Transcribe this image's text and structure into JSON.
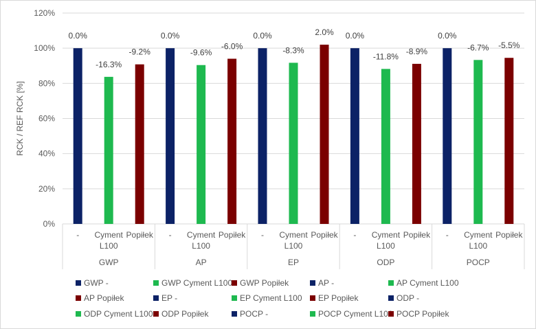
{
  "chart_data": {
    "type": "bar",
    "title": "",
    "ylabel": "RCK / REF RCK [%]",
    "xlabel": "",
    "ylim": [
      0,
      120
    ],
    "yticks": [
      "0%",
      "20%",
      "40%",
      "60%",
      "80%",
      "100%",
      "120%"
    ],
    "grid": true,
    "legend_position": "bottom",
    "colors": {
      "-": "#0c2266",
      "Cyment L100": "#1eb94f",
      "Popiłek": "#7b0000"
    },
    "groups": [
      {
        "name": "GWP",
        "bars": [
          {
            "sub": "-",
            "value": 100,
            "label": "0.0%"
          },
          {
            "sub": "Cyment L100",
            "value": 83.7,
            "label": "-16.3%"
          },
          {
            "sub": "Popiłek",
            "value": 90.8,
            "label": "-9.2%"
          }
        ]
      },
      {
        "name": "AP",
        "bars": [
          {
            "sub": "-",
            "value": 100,
            "label": "0.0%"
          },
          {
            "sub": "Cyment L100",
            "value": 90.4,
            "label": "-9.6%"
          },
          {
            "sub": "Popiłek",
            "value": 94.0,
            "label": "-6.0%"
          }
        ]
      },
      {
        "name": "EP",
        "bars": [
          {
            "sub": "-",
            "value": 100,
            "label": "0.0%"
          },
          {
            "sub": "Cyment L100",
            "value": 91.7,
            "label": "-8.3%"
          },
          {
            "sub": "Popiłek",
            "value": 102.0,
            "label": "2.0%"
          }
        ]
      },
      {
        "name": "ODP",
        "bars": [
          {
            "sub": "-",
            "value": 100,
            "label": "0.0%"
          },
          {
            "sub": "Cyment L100",
            "value": 88.2,
            "label": "-11.8%"
          },
          {
            "sub": "Popiłek",
            "value": 91.1,
            "label": "-8.9%"
          }
        ]
      },
      {
        "name": "POCP",
        "bars": [
          {
            "sub": "-",
            "value": 100,
            "label": "0.0%"
          },
          {
            "sub": "Cyment L100",
            "value": 93.3,
            "label": "-6.7%"
          },
          {
            "sub": "Popiłek",
            "value": 94.5,
            "label": "-5.5%"
          }
        ]
      }
    ],
    "subcategory_labels": [
      {
        "sub": "-",
        "lines": [
          "-"
        ]
      },
      {
        "sub": "Cyment L100",
        "lines": [
          "Cyment",
          "L100"
        ]
      },
      {
        "sub": "Popiłek",
        "lines": [
          "Popiłek"
        ]
      }
    ],
    "legend": [
      {
        "label": "GWP -",
        "sub": "-"
      },
      {
        "label": "GWP Cyment L100",
        "sub": "Cyment L100"
      },
      {
        "label": "GWP Popiłek",
        "sub": "Popiłek"
      },
      {
        "label": "AP -",
        "sub": "-"
      },
      {
        "label": "AP Cyment L100",
        "sub": "Cyment L100"
      },
      {
        "label": "AP Popiłek",
        "sub": "Popiłek"
      },
      {
        "label": "EP -",
        "sub": "-"
      },
      {
        "label": "EP Cyment L100",
        "sub": "Cyment L100"
      },
      {
        "label": "EP Popiłek",
        "sub": "Popiłek"
      },
      {
        "label": "ODP -",
        "sub": "-"
      },
      {
        "label": "ODP Cyment L100",
        "sub": "Cyment L100"
      },
      {
        "label": "ODP Popiłek",
        "sub": "Popiłek"
      },
      {
        "label": "POCP -",
        "sub": "-"
      },
      {
        "label": "POCP Cyment L100",
        "sub": "Cyment L100"
      },
      {
        "label": "POCP Popiłek",
        "sub": "Popiłek"
      }
    ]
  }
}
